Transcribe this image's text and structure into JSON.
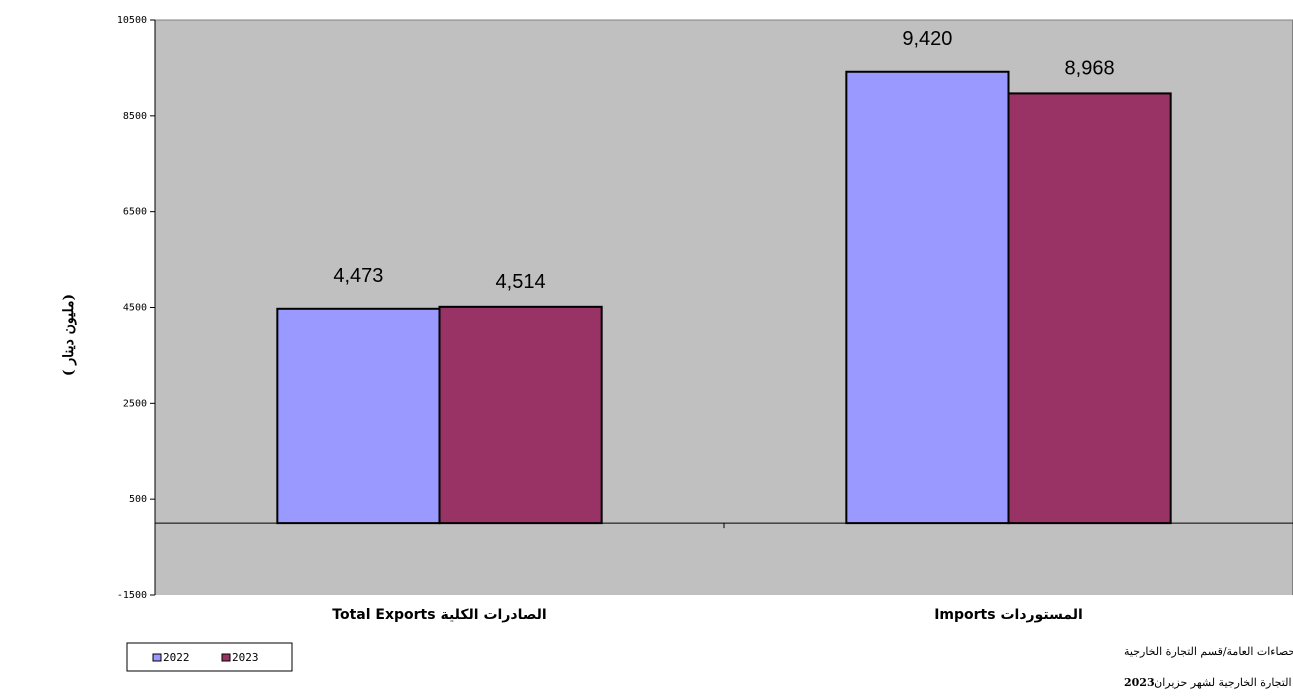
{
  "chart_data": {
    "type": "bar",
    "categories": [
      "Total  Exports  الصادرات الكلية",
      "Imports       المستوردات"
    ],
    "series": [
      {
        "name": "2022",
        "values": [
          4473,
          9420
        ],
        "labels": [
          "4,473",
          "9,420"
        ],
        "color": "#9999ff"
      },
      {
        "name": "2023",
        "values": [
          4514,
          8968
        ],
        "labels": [
          "4,514",
          "8,968"
        ],
        "color": "#993366"
      }
    ],
    "title": "",
    "xlabel": "",
    "ylabel": "( مليون دينار)",
    "ylim": [
      -1500,
      10500
    ],
    "yticks": [
      10500,
      8500,
      6500,
      4500,
      2500,
      500,
      -1500
    ],
    "ytick_labels": [
      "10500",
      "8500",
      "6500",
      "4500",
      "2500",
      "500",
      "-1500"
    ],
    "baseline": 0,
    "grid": false,
    "plot_background": "#c0c0c0",
    "legend_placement": "bottom-left"
  },
  "source": {
    "line1": "المصدر :دائرة الإحصاءات العامة/قسم التجارة الخارجية",
    "line2_text": "تقرير إحصاءات التجارة الخارجية لشهر حزيران",
    "line2_year": "2023"
  }
}
